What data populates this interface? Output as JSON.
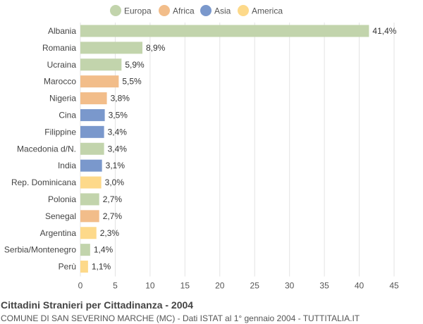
{
  "chart_data": {
    "type": "bar",
    "orientation": "horizontal",
    "title": "Cittadini Stranieri per Cittadinanza - 2004",
    "subtitle": "COMUNE DI SAN SEVERINO MARCHE (MC) - Dati ISTAT al 1° gennaio 2004 - TUTTITALIA.IT",
    "xlim": [
      0,
      45
    ],
    "xticks": [
      0,
      5,
      10,
      15,
      20,
      25,
      30,
      35,
      40,
      45
    ],
    "grid": true,
    "legend_position": "top",
    "legend": [
      {
        "name": "Europa",
        "color": "#c2d4ac"
      },
      {
        "name": "Africa",
        "color": "#f2bd8a"
      },
      {
        "name": "Asia",
        "color": "#7a98cc"
      },
      {
        "name": "America",
        "color": "#fdd98a"
      }
    ],
    "bars": [
      {
        "category": "Albania",
        "value": 41.4,
        "label": "41,4%",
        "group": "Europa"
      },
      {
        "category": "Romania",
        "value": 8.9,
        "label": "8,9%",
        "group": "Europa"
      },
      {
        "category": "Ucraina",
        "value": 5.9,
        "label": "5,9%",
        "group": "Europa"
      },
      {
        "category": "Marocco",
        "value": 5.5,
        "label": "5,5%",
        "group": "Africa"
      },
      {
        "category": "Nigeria",
        "value": 3.8,
        "label": "3,8%",
        "group": "Africa"
      },
      {
        "category": "Cina",
        "value": 3.5,
        "label": "3,5%",
        "group": "Asia"
      },
      {
        "category": "Filippine",
        "value": 3.4,
        "label": "3,4%",
        "group": "Asia"
      },
      {
        "category": "Macedonia d/N.",
        "value": 3.4,
        "label": "3,4%",
        "group": "Europa"
      },
      {
        "category": "India",
        "value": 3.1,
        "label": "3,1%",
        "group": "Asia"
      },
      {
        "category": "Rep. Dominicana",
        "value": 3.0,
        "label": "3,0%",
        "group": "America"
      },
      {
        "category": "Polonia",
        "value": 2.7,
        "label": "2,7%",
        "group": "Europa"
      },
      {
        "category": "Senegal",
        "value": 2.7,
        "label": "2,7%",
        "group": "Africa"
      },
      {
        "category": "Argentina",
        "value": 2.3,
        "label": "2,3%",
        "group": "America"
      },
      {
        "category": "Serbia/Montenegro",
        "value": 1.4,
        "label": "1,4%",
        "group": "Europa"
      },
      {
        "category": "Perù",
        "value": 1.1,
        "label": "1,1%",
        "group": "America"
      }
    ]
  }
}
